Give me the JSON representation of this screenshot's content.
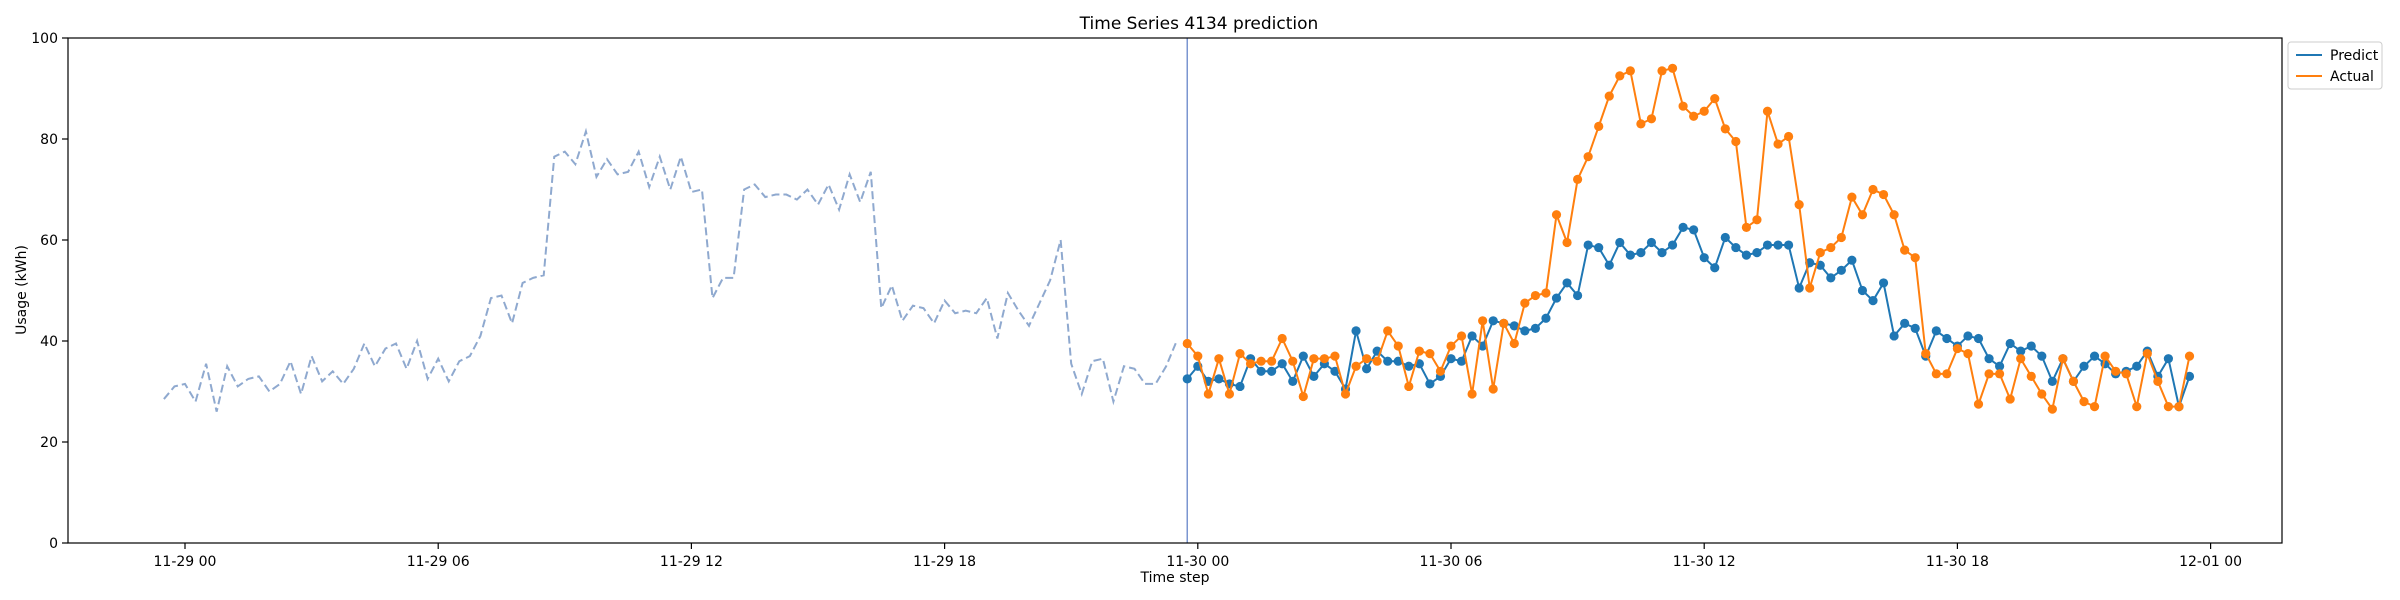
{
  "chart_data": {
    "type": "line",
    "title": "Time Series 4134 prediction",
    "xlabel": "Time step",
    "ylabel": "Usage (kWh)",
    "ylim": [
      0,
      100
    ],
    "yticks": [
      0,
      20,
      40,
      60,
      80,
      100
    ],
    "x_unit": "hours from 2023-11-29 00:00 (year not shown)",
    "xlim": [
      -3,
      48.5
    ],
    "xticks": [
      {
        "x": 0,
        "label": "11-29 00"
      },
      {
        "x": 6,
        "label": "11-29 06"
      },
      {
        "x": 12,
        "label": "11-29 12"
      },
      {
        "x": 18,
        "label": "11-29 18"
      },
      {
        "x": 24,
        "label": "11-30 00"
      },
      {
        "x": 30,
        "label": "11-30 06"
      },
      {
        "x": 36,
        "label": "11-30 12"
      },
      {
        "x": 42,
        "label": "11-30 18"
      },
      {
        "x": 48,
        "label": "12-01 00"
      }
    ],
    "legend_position": "top-right, outside plot",
    "grid": false,
    "forecast_start_x": 23.75,
    "history": {
      "style": "dashed",
      "color": "#8fa9cf",
      "x_start": -0.5,
      "x_step": 0.25,
      "values": [
        28.5,
        31.0,
        31.5,
        28.0,
        35.5,
        26.0,
        35.0,
        31.0,
        32.5,
        33.0,
        30.0,
        31.5,
        36.0,
        29.5,
        37.0,
        32.0,
        34.0,
        31.5,
        34.5,
        39.5,
        35.0,
        38.5,
        39.5,
        34.5,
        40.0,
        32.5,
        36.5,
        32.0,
        36.0,
        37.0,
        41.0,
        48.5,
        49.0,
        43.5,
        51.5,
        52.5,
        53.0,
        76.5,
        77.5,
        75.0,
        81.5,
        72.5,
        76.0,
        73.0,
        73.5,
        77.5,
        70.5,
        76.5,
        70.0,
        76.5,
        69.5,
        70.0,
        48.5,
        52.5,
        52.5,
        70.0,
        71.0,
        68.5,
        69.0,
        69.0,
        68.0,
        70.0,
        67.0,
        71.0,
        66.0,
        73.0,
        67.5,
        73.5,
        46.5,
        51.0,
        44.0,
        47.0,
        46.5,
        43.5,
        48.0,
        45.5,
        46.0,
        45.5,
        48.5,
        40.5,
        49.5,
        46.0,
        43.0,
        47.5,
        52.0,
        60.0,
        35.5,
        29.5,
        36.0,
        36.5,
        28.0,
        35.0,
        34.5,
        31.5,
        31.5,
        35.0,
        40.0
      ]
    },
    "series": [
      {
        "name": "Predict",
        "color": "#1f77b4",
        "x_start": 23.75,
        "x_step": 0.25,
        "values": [
          32.5,
          35.0,
          32.0,
          32.5,
          31.5,
          31.0,
          36.5,
          34.0,
          34.0,
          35.5,
          32.0,
          37.0,
          33.0,
          35.5,
          34.0,
          30.5,
          42.0,
          34.5,
          38.0,
          36.0,
          36.0,
          35.0,
          35.5,
          31.5,
          33.0,
          36.5,
          36.0,
          41.0,
          39.0,
          44.0,
          43.5,
          43.0,
          42.0,
          42.5,
          44.5,
          48.5,
          51.5,
          49.0,
          59.0,
          58.5,
          55.0,
          59.5,
          57.0,
          57.5,
          59.5,
          57.5,
          59.0,
          62.5,
          62.0,
          56.5,
          54.5,
          60.5,
          58.5,
          57.0,
          57.5,
          59.0,
          59.0,
          59.0,
          50.5,
          55.5,
          55.0,
          52.5,
          54.0,
          56.0,
          50.0,
          48.0,
          51.5,
          41.0,
          43.5,
          42.5,
          37.0,
          42.0,
          40.5,
          39.0,
          41.0,
          40.5,
          36.5,
          35.0,
          39.5,
          38.0,
          39.0,
          37.0,
          32.0,
          36.5,
          32.0,
          35.0,
          37.0,
          35.5,
          33.5,
          34.0,
          35.0,
          38.0,
          33.0,
          36.5,
          27.0,
          33.0
        ]
      },
      {
        "name": "Actual",
        "color": "#ff7f0e",
        "x_start": 23.75,
        "x_step": 0.25,
        "values": [
          39.5,
          37.0,
          29.5,
          36.5,
          29.5,
          37.5,
          35.5,
          36.0,
          36.0,
          40.5,
          36.0,
          29.0,
          36.5,
          36.5,
          37.0,
          29.5,
          35.0,
          36.5,
          36.0,
          42.0,
          39.0,
          31.0,
          38.0,
          37.5,
          34.0,
          39.0,
          41.0,
          29.5,
          44.0,
          30.5,
          43.5,
          39.5,
          47.5,
          49.0,
          49.5,
          65.0,
          59.5,
          72.0,
          76.5,
          82.5,
          88.5,
          92.5,
          93.5,
          83.0,
          84.0,
          93.5,
          94.0,
          86.5,
          84.5,
          85.5,
          88.0,
          82.0,
          79.5,
          62.5,
          64.0,
          85.5,
          79.0,
          80.5,
          67.0,
          50.5,
          57.5,
          58.5,
          60.5,
          68.5,
          65.0,
          70.0,
          69.0,
          65.0,
          58.0,
          56.5,
          37.5,
          33.5,
          33.5,
          38.5,
          37.5,
          27.5,
          33.5,
          33.5,
          28.5,
          36.5,
          33.0,
          29.5,
          26.5,
          36.5,
          32.0,
          28.0,
          27.0,
          37.0,
          34.0,
          33.5,
          27.0,
          37.5,
          32.0,
          27.0,
          27.0,
          37.0
        ]
      }
    ]
  }
}
